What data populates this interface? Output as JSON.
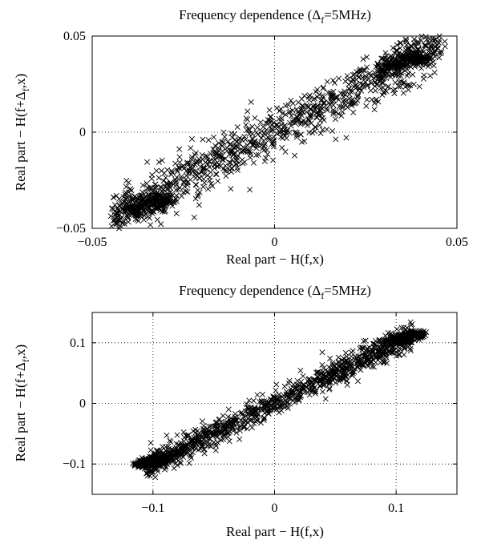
{
  "chart_data": [
    {
      "type": "scatter",
      "title": "Frequency dependence (Δf=5MHz)",
      "title_parts": {
        "pre": "Frequency dependence (Δ",
        "sub": "f",
        "post": "=5MHz)"
      },
      "xlabel": "Real part − H(f,x)",
      "ylabel_parts": {
        "pre": "Real part − H(f+Δ",
        "sub": "f",
        "post": ",x)"
      },
      "xlim": [
        -0.05,
        0.05
      ],
      "ylim": [
        -0.05,
        0.05
      ],
      "xticks": [
        -0.05,
        0,
        0.05
      ],
      "yticks": [
        -0.05,
        0,
        0.05
      ],
      "xtick_labels": [
        "−0.05",
        "0",
        "0.05"
      ],
      "ytick_labels": [
        "−0.05",
        "0",
        "0.05"
      ],
      "grid": "dotted at 0",
      "marker": "x",
      "point_cloud": {
        "n": 1400,
        "slope": 1.0,
        "x_range": [
          -0.045,
          0.047
        ],
        "spread": 0.0065,
        "loop_centers": [
          [
            -0.035,
            -0.038
          ],
          [
            0.036,
            0.037
          ]
        ]
      }
    },
    {
      "type": "scatter",
      "title": "Frequency dependence (Δf=5MHz)",
      "title_parts": {
        "pre": "Frequency dependence (Δ",
        "sub": "f",
        "post": "=5MHz)"
      },
      "xlabel": "Real part − H(f,x)",
      "ylabel_parts": {
        "pre": "Real part − H(f+Δ",
        "sub": "f",
        "post": ",x)"
      },
      "xlim": [
        -0.15,
        0.15
      ],
      "ylim": [
        -0.15,
        0.15
      ],
      "xticks": [
        -0.1,
        0,
        0.1
      ],
      "yticks": [
        -0.1,
        0,
        0.1
      ],
      "xtick_labels": [
        "−0.1",
        "0",
        "0.1"
      ],
      "ytick_labels": [
        "−0.1",
        "0",
        "0.1"
      ],
      "grid": "dotted at ticks",
      "marker": "x",
      "point_cloud": {
        "n": 1400,
        "slope": 1.0,
        "x_range": [
          -0.107,
          0.115
        ],
        "spread": 0.011,
        "loop_centers": [
          [
            -0.1,
            -0.095
          ],
          [
            0.108,
            0.108
          ]
        ]
      }
    }
  ]
}
